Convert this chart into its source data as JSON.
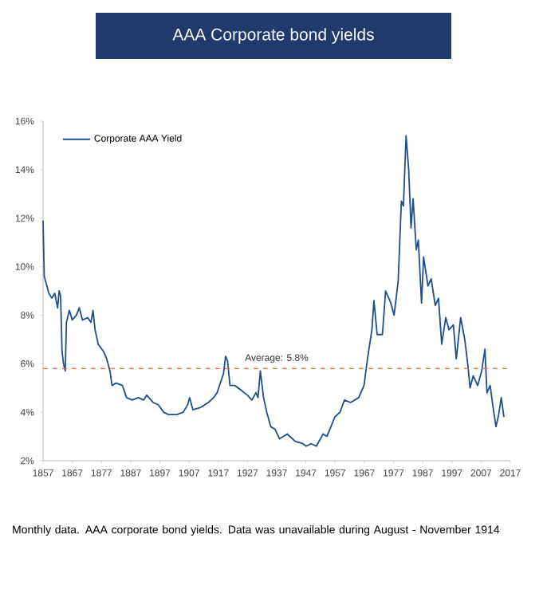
{
  "chart_data": {
    "type": "line",
    "title": "AAA Corporate bond yields",
    "x": [
      1857,
      1857.4,
      1859,
      1860,
      1861,
      1862,
      1862.5,
      1863,
      1863.5,
      1864,
      1864.6,
      1865,
      1866,
      1867,
      1868.4,
      1869.4,
      1870.5,
      1872.3,
      1873.4,
      1874.1,
      1874.8,
      1875.9,
      1877.7,
      1878.8,
      1879.9,
      1880.6,
      1882,
      1884.2,
      1885.6,
      1887.5,
      1889.6,
      1891.4,
      1892.5,
      1894.7,
      1896.5,
      1898.3,
      1900,
      1902.8,
      1905,
      1906.5,
      1907.2,
      1908.3,
      1911,
      1913.6,
      1915.4,
      1916.6,
      1917.7,
      1918.8,
      1919.5,
      1920.2,
      1921,
      1922.7,
      1924.9,
      1927,
      1928.5,
      1929.9,
      1930.6,
      1931.4,
      1932.5,
      1933.6,
      1935,
      1936.4,
      1938,
      1940.6,
      1943.3,
      1946,
      1947.1,
      1948.8,
      1950.6,
      1952.9,
      1954.2,
      1956.9,
      1958.7,
      1960.2,
      1962.3,
      1965.1,
      1966.9,
      1968.1,
      1969.6,
      1970.3,
      1971.4,
      1973.2,
      1974.3,
      1976.1,
      1977.2,
      1978.6,
      1979.7,
      1980.4,
      1981.3,
      1982.2,
      1983,
      1983.7,
      1984.8,
      1985.5,
      1986.6,
      1987.3,
      1988.8,
      1989.9,
      1991.3,
      1992.4,
      1993.5,
      1994.9,
      1996,
      1997.5,
      1998.5,
      2000,
      2001.4,
      2002.5,
      2003.2,
      2004.3,
      2005.8,
      2007.2,
      2008.3,
      2009,
      2010.1,
      2011.2,
      2012.1,
      2013,
      2013.9,
      2014.8
    ],
    "series": [
      {
        "name": "Corporate AAA Yield",
        "color": "#1f4e8c",
        "values": [
          11.9,
          9.6,
          8.9,
          8.7,
          8.9,
          8.3,
          9.0,
          8.8,
          6.5,
          6.0,
          5.7,
          7.7,
          8.2,
          7.8,
          8.0,
          8.3,
          7.8,
          7.9,
          7.7,
          8.2,
          7.4,
          6.8,
          6.5,
          6.2,
          5.7,
          5.1,
          5.2,
          5.1,
          4.6,
          4.5,
          4.6,
          4.5,
          4.7,
          4.4,
          4.3,
          4.0,
          3.9,
          3.9,
          4.0,
          4.3,
          4.6,
          4.1,
          4.2,
          4.4,
          4.6,
          4.8,
          5.2,
          5.6,
          6.3,
          6.1,
          5.1,
          5.1,
          4.9,
          4.7,
          4.5,
          4.8,
          4.6,
          5.7,
          4.6,
          4.0,
          3.4,
          3.3,
          2.9,
          3.1,
          2.8,
          2.7,
          2.6,
          2.7,
          2.6,
          3.1,
          3.0,
          3.8,
          4.0,
          4.5,
          4.4,
          4.6,
          5.1,
          6.2,
          7.4,
          8.6,
          7.2,
          7.2,
          9.0,
          8.5,
          8.0,
          9.4,
          12.7,
          12.5,
          15.4,
          14.0,
          11.6,
          12.8,
          10.7,
          11.1,
          8.5,
          10.4,
          9.2,
          9.5,
          8.4,
          8.7,
          6.8,
          7.9,
          7.4,
          7.6,
          6.2,
          7.9,
          7.0,
          5.9,
          5.0,
          5.5,
          5.1,
          5.7,
          6.6,
          4.8,
          5.1,
          4.1,
          3.4,
          3.9,
          4.6,
          3.8
        ]
      }
    ],
    "xlim": [
      1857,
      2017
    ],
    "xticks": [
      1857,
      1867,
      1877,
      1887,
      1897,
      1907,
      1917,
      1927,
      1937,
      1947,
      1957,
      1967,
      1977,
      1987,
      1997,
      2007,
      2017
    ],
    "ylim": [
      2,
      16
    ],
    "yticks": [
      {
        "value": 2,
        "label": "2%"
      },
      {
        "value": 4,
        "label": "4%"
      },
      {
        "value": 6,
        "label": "6%"
      },
      {
        "value": 8,
        "label": "8%"
      },
      {
        "value": 10,
        "label": "10%"
      },
      {
        "value": 12,
        "label": "12%"
      },
      {
        "value": 14,
        "label": "14%"
      },
      {
        "value": 16,
        "label": "16%"
      }
    ],
    "ref_lines": [
      {
        "axis": "y",
        "value": 5.8,
        "label": "Average: 5.8%",
        "color": "#e8743b",
        "line_style": "dashed"
      }
    ],
    "legend": "top left",
    "marker": "none",
    "line_style": "solid",
    "annotations": [
      "Monthly data. AAA corporate bond yields. Data was unavailable during August - November 1914"
    ]
  }
}
